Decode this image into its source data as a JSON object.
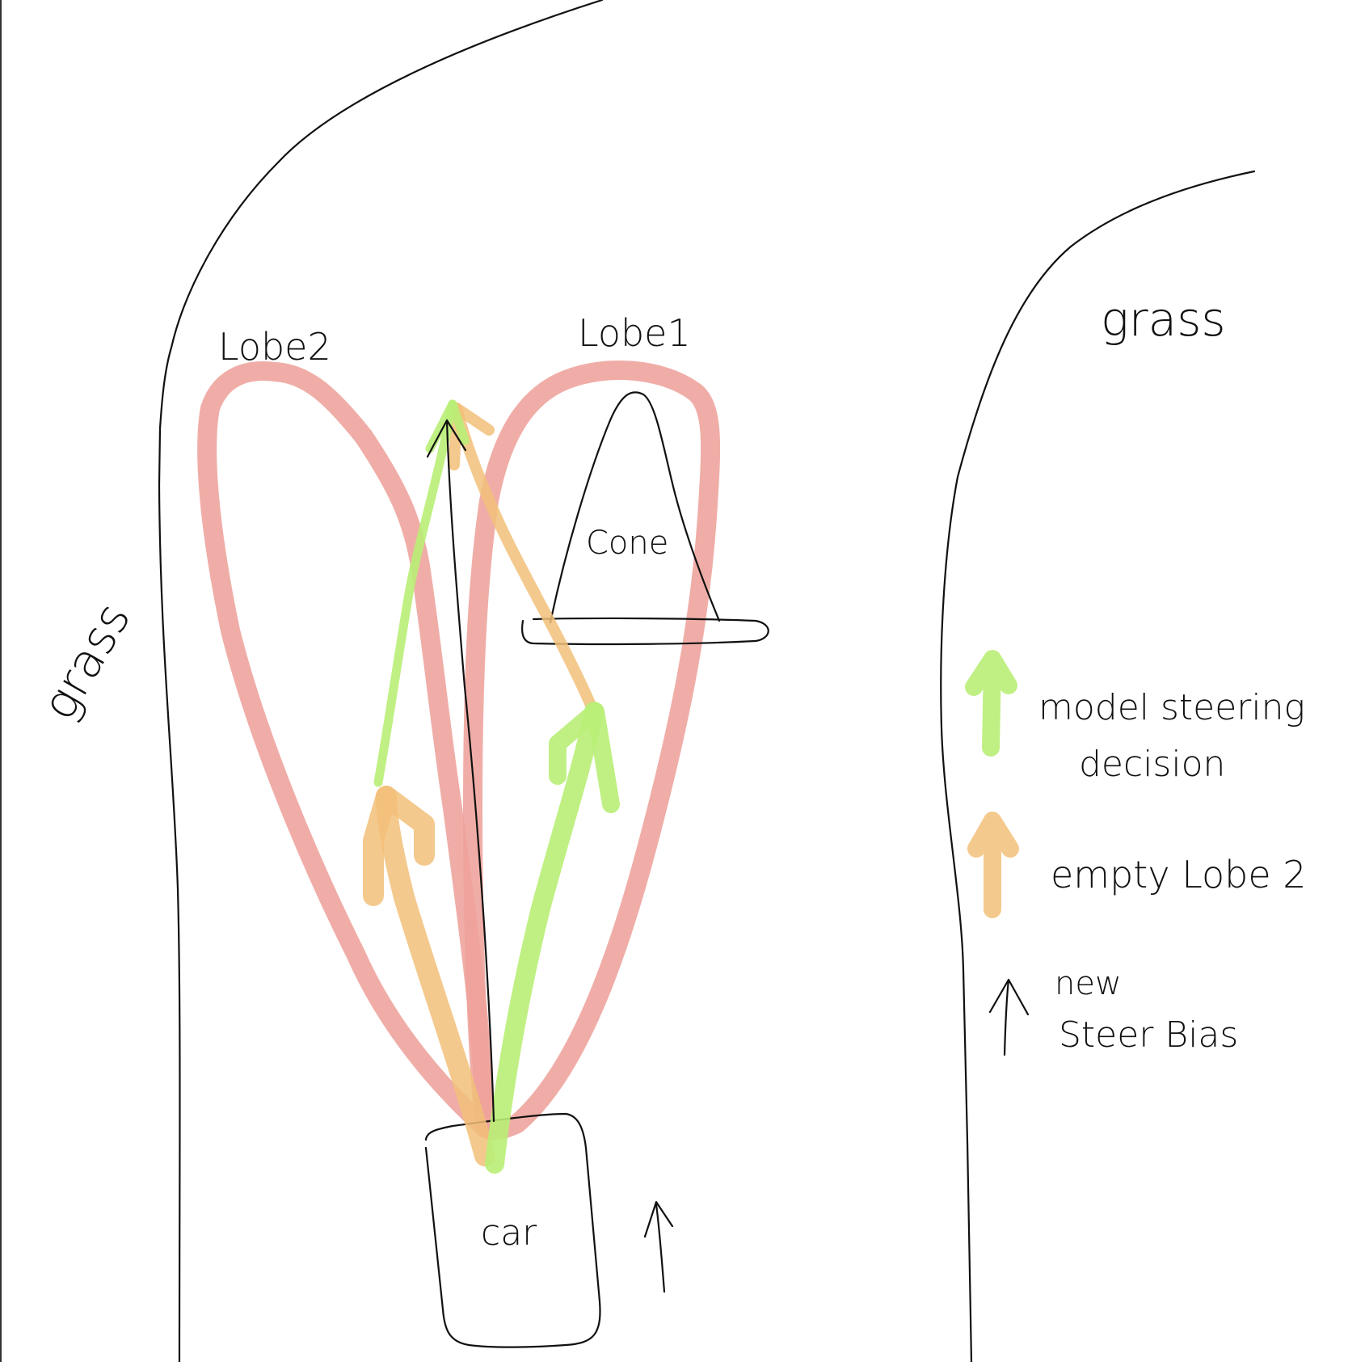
{
  "labels": {
    "grass_left": "grass",
    "grass_right": "grass",
    "lobe2": "Lobe2",
    "lobe1": "Lobe1",
    "cone": "Cone",
    "car": "car"
  },
  "legend": {
    "model_steering_line1": "model steering",
    "model_steering_line2": "decision",
    "empty_lobe2": "empty Lobe 2",
    "new_steer_bias_line1": "new",
    "new_steer_bias_line2": "Steer Bias"
  },
  "colors": {
    "lobe": "#eea29b",
    "green_arrow": "#b9ee77",
    "orange_arrow": "#f2c079",
    "ink": "#111111"
  }
}
